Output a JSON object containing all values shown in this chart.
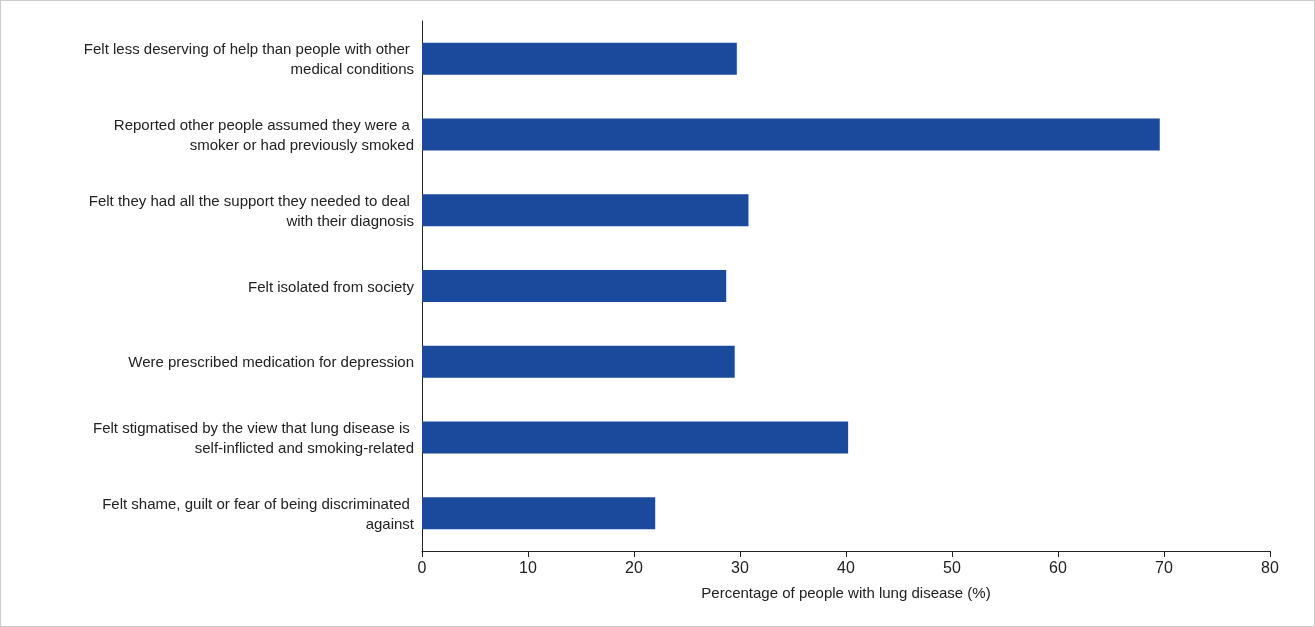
{
  "chart_data": {
    "type": "bar",
    "orientation": "horizontal",
    "xlabel": "Percentage of people with lung disease (%)",
    "categories": [
      "Felt less deserving of help than people with other medical conditions",
      "Reported other people assumed they were a smoker or had previously smoked",
      "Felt they had all the support they needed to deal with their diagnosis",
      "Felt isolated from society",
      "Were prescribed medication for depression",
      "Felt stigmatised by the view that lung disease is self-inflicted and smoking-related",
      "Felt shame, guilt or fear of being discriminated against"
    ],
    "values": [
      29.7,
      69.6,
      30.8,
      28.7,
      29.5,
      40.2,
      22.0
    ],
    "color": "#1b4a9c",
    "xlim": [
      0,
      80
    ],
    "xticks": [
      0,
      10,
      20,
      30,
      40,
      50,
      60,
      70,
      80
    ],
    "grid": false
  }
}
